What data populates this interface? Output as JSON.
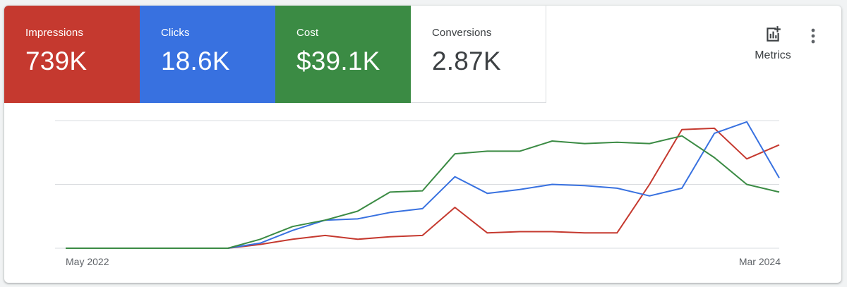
{
  "tiles": [
    {
      "label": "Impressions",
      "value": "739K",
      "color": "#c5392f"
    },
    {
      "label": "Clicks",
      "value": "18.6K",
      "color": "#3871e0"
    },
    {
      "label": "Cost",
      "value": "$39.1K",
      "color": "#3b8b44"
    },
    {
      "label": "Conversions",
      "value": "2.87K",
      "color": "#ffffff"
    }
  ],
  "toolbar": {
    "metrics_label": "Metrics",
    "metrics_icon": "add-chart-icon",
    "more_icon": "more-vert-icon"
  },
  "chart_data": {
    "type": "line",
    "x": [
      "2022-05",
      "2022-06",
      "2022-07",
      "2022-08",
      "2022-09",
      "2022-10",
      "2022-11",
      "2022-12",
      "2023-01",
      "2023-02",
      "2023-03",
      "2023-04",
      "2023-05",
      "2023-06",
      "2023-07",
      "2023-08",
      "2023-09",
      "2023-10",
      "2023-11",
      "2023-12",
      "2024-01",
      "2024-02",
      "2024-03"
    ],
    "x_tick_labels": [
      "May 2022",
      "Mar 2024"
    ],
    "ylim": [
      0,
      100
    ],
    "grid": true,
    "legend": "none",
    "series": [
      {
        "color": "#c5392f",
        "values": [
          0,
          0,
          0,
          0,
          0,
          0,
          3,
          7,
          10,
          7,
          9,
          10,
          32,
          12,
          13,
          13,
          12,
          12,
          50,
          93,
          94,
          70,
          81
        ]
      },
      {
        "color": "#3871e0",
        "values": [
          0,
          0,
          0,
          0,
          0,
          0,
          4,
          14,
          22,
          23,
          28,
          31,
          56,
          43,
          46,
          50,
          49,
          47,
          41,
          47,
          90,
          99,
          55
        ]
      },
      {
        "color": "#3b8b44",
        "values": [
          0,
          0,
          0,
          0,
          0,
          0,
          7,
          17,
          22,
          29,
          44,
          45,
          74,
          76,
          76,
          84,
          82,
          83,
          82,
          88,
          71,
          50,
          44
        ]
      }
    ]
  }
}
